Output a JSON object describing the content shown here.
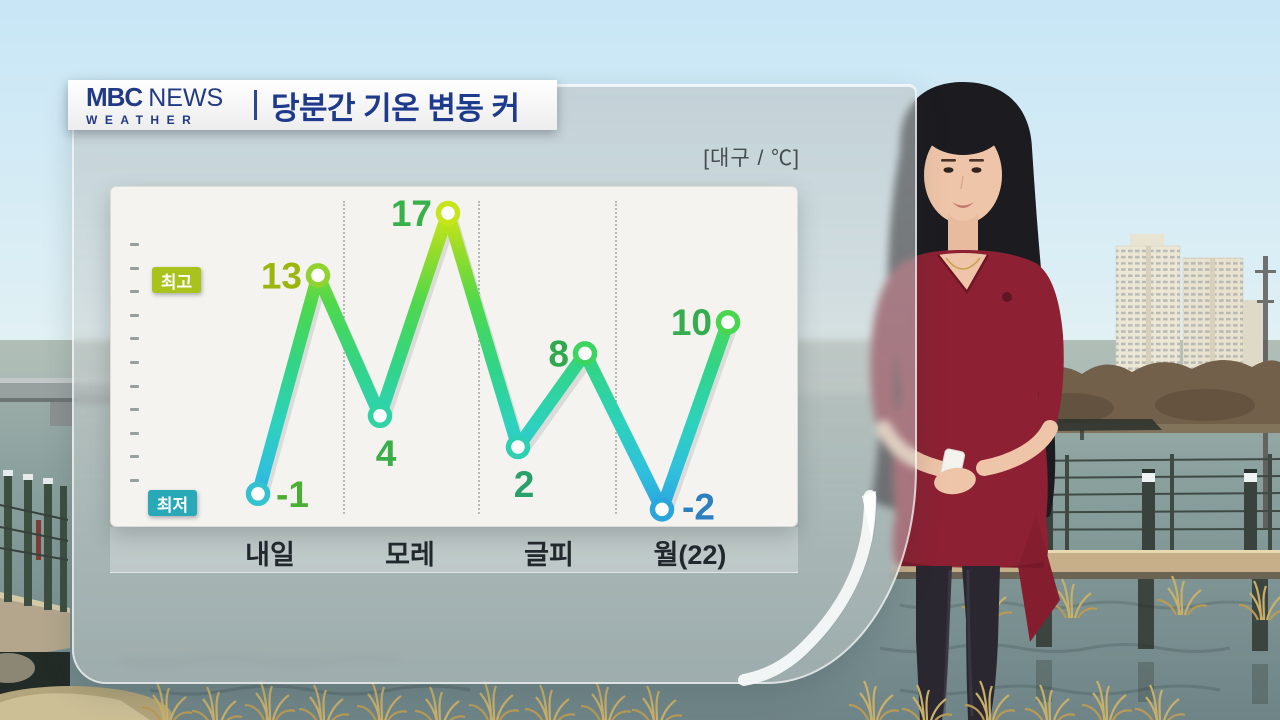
{
  "header": {
    "logo_mbc": "MBC",
    "logo_news": "NEWS",
    "logo_weather": "WEATHER",
    "title": "당분간 기온 변동 커"
  },
  "chart": {
    "unit_label": "[대구 / ℃]",
    "legend_high": "최고",
    "legend_low": "최저"
  },
  "chart_data": {
    "type": "line",
    "title": "당분간 기온 변동 커",
    "location": "대구",
    "unit": "℃",
    "categories": [
      "내일",
      "모레",
      "글피",
      "월(22)"
    ],
    "series": [
      {
        "name": "최고",
        "values": [
          13,
          17,
          8,
          10
        ]
      },
      {
        "name": "최저",
        "values": [
          -1,
          4,
          2,
          -2
        ]
      }
    ],
    "point_order": "zigzag: low then high for each day, single connected line",
    "ylim": [
      -4,
      19
    ],
    "grid": "vertical dotted day separators, small y-axis ticks (unlabeled)",
    "legend_position": "left"
  },
  "style": {
    "navy": "#1d3a8c",
    "badge_high_bg": "#a9c31c",
    "badge_low_bg": "#29a9b8",
    "badge_text": "#ffffff",
    "panel_bg": "#f4f3f0",
    "axis_label_color": "#22292e",
    "unit_label_color": "#454c50",
    "line_gradient": [
      "#d3ec12",
      "#9adc28",
      "#4ed84d",
      "#32d487",
      "#2dd2bb",
      "#2fc0dc",
      "#2aa0e0"
    ],
    "high_point_colors": [
      "#8fd232",
      "#c6e51a",
      "#3bd55f",
      "#49d64e"
    ],
    "low_point_colors": [
      "#33c3cf",
      "#2fd3a4",
      "#2dd0b2",
      "#2ba6dc"
    ],
    "high_label_colors": [
      "#9bb70f",
      "#38b148",
      "#2fa94e",
      "#35ad4e"
    ],
    "low_label_colors": [
      "#4caf35",
      "#3aaf49",
      "#2aa06b",
      "#2e7fc0"
    ]
  }
}
